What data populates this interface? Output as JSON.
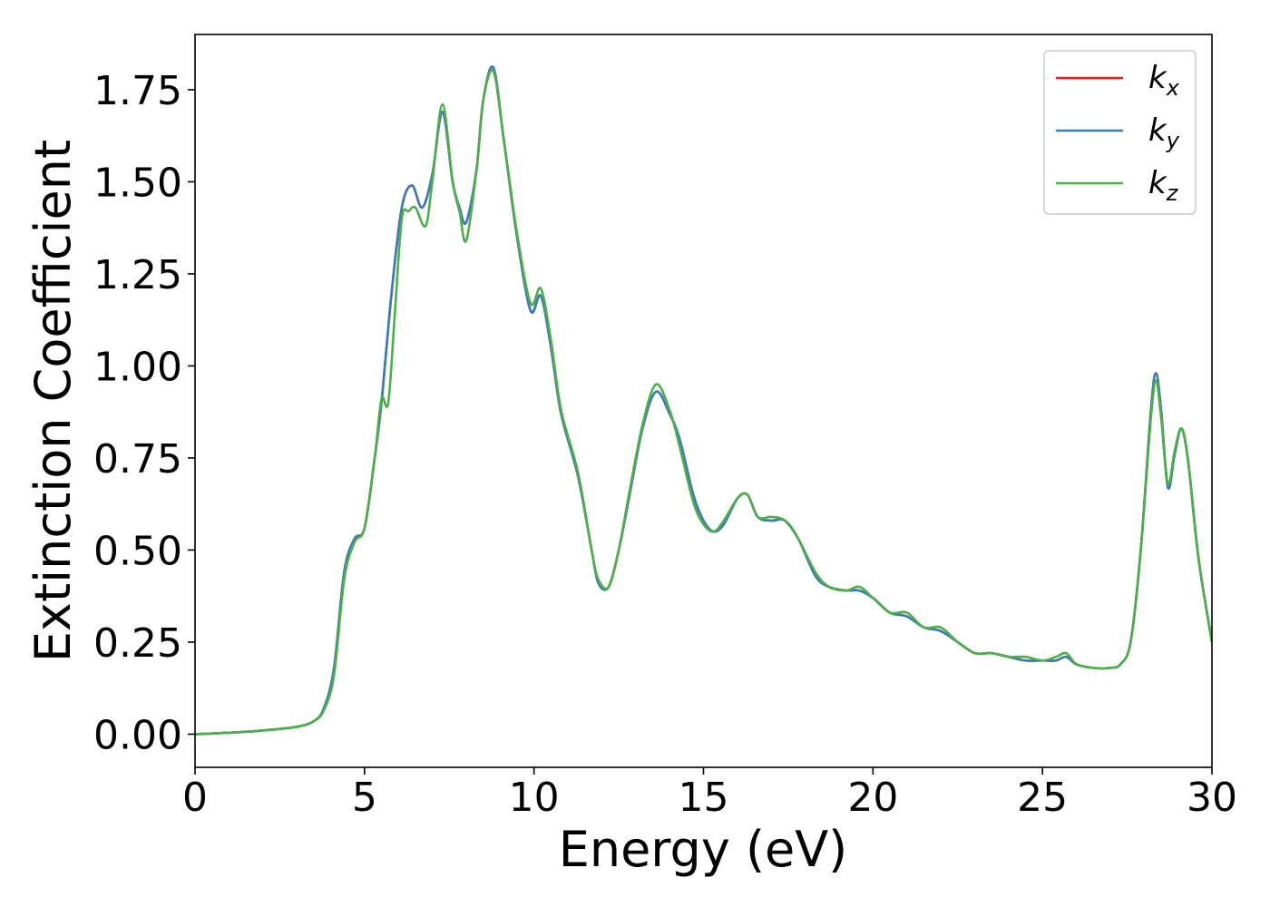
{
  "chart_data": {
    "type": "line",
    "xlabel": "Energy (eV)",
    "ylabel": "Extinction Coefficient",
    "xlim": [
      0,
      30
    ],
    "ylim": [
      -0.09,
      1.9
    ],
    "xticks": [
      0,
      5,
      10,
      15,
      20,
      25,
      30
    ],
    "xtick_labels": [
      "0",
      "5",
      "10",
      "15",
      "20",
      "25",
      "30"
    ],
    "yticks": [
      0.0,
      0.25,
      0.5,
      0.75,
      1.0,
      1.25,
      1.5,
      1.75
    ],
    "ytick_labels": [
      "0.00",
      "0.25",
      "0.50",
      "0.75",
      "1.00",
      "1.25",
      "1.50",
      "1.75"
    ],
    "grid": false,
    "legend_position": "top-right",
    "series": [
      {
        "name": "k_x",
        "legend_main": "k",
        "legend_sub": "x",
        "color": "#e41a1c",
        "x": [
          0,
          1,
          2,
          3,
          3.5,
          3.8,
          4.1,
          4.4,
          4.7,
          5.0,
          5.3,
          5.5,
          5.8,
          6.1,
          6.4,
          6.7,
          7.0,
          7.3,
          7.6,
          7.8,
          8.0,
          8.3,
          8.5,
          8.8,
          9.1,
          9.5,
          9.9,
          10.2,
          10.5,
          10.8,
          11.3,
          11.7,
          11.9,
          12.2,
          12.5,
          12.8,
          13.2,
          13.6,
          14.0,
          14.3,
          14.7,
          15.0,
          15.3,
          15.6,
          16.0,
          16.3,
          16.6,
          17.0,
          17.4,
          17.8,
          18.3,
          18.7,
          19.2,
          19.6,
          20.0,
          20.5,
          21.0,
          21.5,
          22.0,
          22.5,
          23.0,
          23.5,
          24.0,
          24.5,
          25.0,
          25.4,
          25.7,
          26.0,
          26.5,
          27.0,
          27.3,
          27.6,
          27.9,
          28.2,
          28.35,
          28.5,
          28.7,
          28.9,
          29.1,
          29.3,
          29.6,
          30.0
        ],
        "y": [
          0.0,
          0.004,
          0.01,
          0.02,
          0.035,
          0.07,
          0.18,
          0.44,
          0.53,
          0.56,
          0.75,
          0.9,
          1.2,
          1.43,
          1.49,
          1.43,
          1.52,
          1.69,
          1.5,
          1.43,
          1.39,
          1.53,
          1.72,
          1.81,
          1.62,
          1.35,
          1.15,
          1.19,
          1.05,
          0.87,
          0.7,
          0.5,
          0.41,
          0.4,
          0.5,
          0.64,
          0.83,
          0.93,
          0.87,
          0.8,
          0.65,
          0.58,
          0.55,
          0.57,
          0.64,
          0.65,
          0.59,
          0.58,
          0.58,
          0.53,
          0.43,
          0.4,
          0.39,
          0.39,
          0.37,
          0.33,
          0.32,
          0.29,
          0.28,
          0.25,
          0.22,
          0.22,
          0.21,
          0.2,
          0.2,
          0.2,
          0.21,
          0.19,
          0.18,
          0.18,
          0.19,
          0.25,
          0.5,
          0.88,
          0.98,
          0.88,
          0.67,
          0.76,
          0.83,
          0.74,
          0.48,
          0.25
        ]
      },
      {
        "name": "k_y",
        "legend_main": "k",
        "legend_sub": "y",
        "color": "#377eb8",
        "x": [
          0,
          1,
          2,
          3,
          3.5,
          3.8,
          4.1,
          4.4,
          4.7,
          5.0,
          5.3,
          5.5,
          5.8,
          6.1,
          6.4,
          6.7,
          7.0,
          7.3,
          7.6,
          7.8,
          8.0,
          8.3,
          8.5,
          8.8,
          9.1,
          9.5,
          9.9,
          10.2,
          10.5,
          10.8,
          11.3,
          11.7,
          11.9,
          12.2,
          12.5,
          12.8,
          13.2,
          13.6,
          14.0,
          14.3,
          14.7,
          15.0,
          15.3,
          15.6,
          16.0,
          16.3,
          16.6,
          17.0,
          17.4,
          17.8,
          18.3,
          18.7,
          19.2,
          19.6,
          20.0,
          20.5,
          21.0,
          21.5,
          22.0,
          22.5,
          23.0,
          23.5,
          24.0,
          24.5,
          25.0,
          25.4,
          25.7,
          26.0,
          26.5,
          27.0,
          27.3,
          27.6,
          27.9,
          28.2,
          28.35,
          28.5,
          28.7,
          28.9,
          29.1,
          29.3,
          29.6,
          30.0
        ],
        "y": [
          0.0,
          0.004,
          0.01,
          0.02,
          0.035,
          0.07,
          0.18,
          0.44,
          0.53,
          0.56,
          0.75,
          0.9,
          1.2,
          1.43,
          1.49,
          1.43,
          1.52,
          1.69,
          1.5,
          1.43,
          1.39,
          1.53,
          1.72,
          1.81,
          1.62,
          1.35,
          1.15,
          1.19,
          1.05,
          0.87,
          0.7,
          0.5,
          0.41,
          0.4,
          0.5,
          0.64,
          0.83,
          0.93,
          0.87,
          0.8,
          0.65,
          0.58,
          0.55,
          0.57,
          0.64,
          0.65,
          0.59,
          0.58,
          0.58,
          0.53,
          0.43,
          0.4,
          0.39,
          0.39,
          0.37,
          0.33,
          0.32,
          0.29,
          0.28,
          0.25,
          0.22,
          0.22,
          0.21,
          0.2,
          0.2,
          0.2,
          0.21,
          0.19,
          0.18,
          0.18,
          0.19,
          0.25,
          0.5,
          0.88,
          0.98,
          0.88,
          0.67,
          0.76,
          0.83,
          0.74,
          0.48,
          0.25
        ]
      },
      {
        "name": "k_z",
        "legend_main": "k",
        "legend_sub": "z",
        "color": "#4daf4a",
        "x": [
          0,
          1,
          2,
          3,
          3.5,
          3.8,
          4.1,
          4.4,
          4.7,
          5.0,
          5.3,
          5.5,
          5.7,
          5.9,
          6.1,
          6.3,
          6.5,
          6.8,
          7.0,
          7.3,
          7.6,
          7.8,
          8.0,
          8.3,
          8.5,
          8.8,
          9.1,
          9.5,
          9.9,
          10.2,
          10.5,
          10.8,
          11.3,
          11.7,
          11.9,
          12.2,
          12.5,
          12.8,
          13.2,
          13.6,
          14.0,
          14.3,
          14.7,
          15.0,
          15.3,
          15.6,
          16.0,
          16.3,
          16.6,
          17.0,
          17.4,
          17.8,
          18.3,
          18.7,
          19.2,
          19.6,
          20.0,
          20.5,
          21.0,
          21.5,
          22.0,
          22.5,
          23.0,
          23.5,
          24.0,
          24.5,
          25.0,
          25.4,
          25.7,
          26.0,
          26.5,
          27.0,
          27.3,
          27.6,
          27.9,
          28.2,
          28.35,
          28.5,
          28.7,
          28.9,
          29.1,
          29.3,
          29.6,
          30.0
        ],
        "y": [
          0.0,
          0.004,
          0.01,
          0.02,
          0.035,
          0.065,
          0.16,
          0.42,
          0.52,
          0.56,
          0.75,
          0.91,
          0.9,
          1.15,
          1.4,
          1.42,
          1.43,
          1.38,
          1.5,
          1.71,
          1.5,
          1.42,
          1.34,
          1.53,
          1.72,
          1.8,
          1.62,
          1.36,
          1.17,
          1.21,
          1.07,
          0.88,
          0.71,
          0.5,
          0.42,
          0.4,
          0.5,
          0.65,
          0.84,
          0.95,
          0.88,
          0.78,
          0.63,
          0.57,
          0.55,
          0.58,
          0.64,
          0.65,
          0.59,
          0.59,
          0.58,
          0.53,
          0.44,
          0.4,
          0.39,
          0.4,
          0.37,
          0.33,
          0.33,
          0.29,
          0.29,
          0.25,
          0.22,
          0.22,
          0.21,
          0.21,
          0.2,
          0.21,
          0.22,
          0.19,
          0.18,
          0.18,
          0.19,
          0.25,
          0.5,
          0.86,
          0.96,
          0.86,
          0.68,
          0.77,
          0.83,
          0.74,
          0.48,
          0.25
        ]
      }
    ]
  }
}
